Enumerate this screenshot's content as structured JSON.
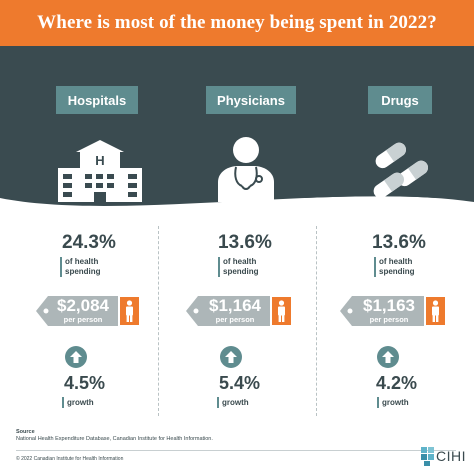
{
  "title": "Where is most of the money being spent in 2022?",
  "colors": {
    "orange": "#ee7a2d",
    "dark_teal": "#3a4b50",
    "teal": "#5f8c8f",
    "text": "#3a4a4e",
    "tag_gray": "#adb6b8"
  },
  "categories": [
    {
      "label": "Hospitals",
      "icon": "hospital-icon",
      "share": "24.3%",
      "share_sub": "of health spending",
      "per_person": "$2,084",
      "per_person_sub": "per person",
      "growth": "4.5%",
      "growth_sub": "growth"
    },
    {
      "label": "Physicians",
      "icon": "physician-icon",
      "share": "13.6%",
      "share_sub": "of health spending",
      "per_person": "$1,164",
      "per_person_sub": "per person",
      "growth": "5.4%",
      "growth_sub": "growth"
    },
    {
      "label": "Drugs",
      "icon": "pills-icon",
      "share": "13.6%",
      "share_sub": "of health spending",
      "per_person": "$1,163",
      "per_person_sub": "per person",
      "growth": "4.2%",
      "growth_sub": "growth"
    }
  ],
  "source": {
    "heading": "Source",
    "text": "National Health Expenditure Database, Canadian Institute for Health Information."
  },
  "copyright": "© 2022 Canadian Institute for Health Information",
  "logo_text": "CIHI"
}
